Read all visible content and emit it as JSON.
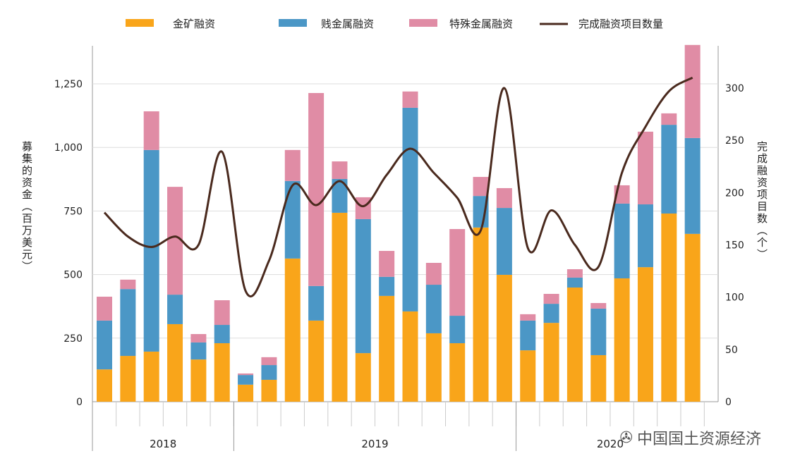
{
  "chart_data": {
    "type": "bar",
    "stacked": true,
    "legend": [
      "金矿融资",
      "贱金属融资",
      "特殊金属融资",
      "完成融资项目数量"
    ],
    "legend_placement": "top",
    "ylabel": "募集的资金（百万美元）",
    "y2label": "完成融资项目数（个）",
    "ylim": [
      0,
      1400
    ],
    "y2lim": [
      0,
      340
    ],
    "yticks": [
      "0",
      "250",
      "500",
      "750",
      "1,000",
      "1,250"
    ],
    "ytick_values": [
      0,
      250,
      500,
      750,
      1000,
      1250
    ],
    "y2ticks": [
      "0",
      "50",
      "100",
      "150",
      "200",
      "250",
      "300"
    ],
    "y2tick_values": [
      0,
      50,
      100,
      150,
      200,
      250,
      300
    ],
    "years": [
      {
        "label": "2018",
        "count": 6
      },
      {
        "label": "2019",
        "count": 12
      },
      {
        "label": "2020",
        "count": 8
      }
    ],
    "colors": {
      "gold": "#F9A51A",
      "base": "#4B97C6",
      "special": "#E08CA5",
      "line": "#4A2A1E"
    },
    "series": [
      {
        "name": "金矿融资",
        "values": [
          127,
          180,
          197,
          305,
          166,
          230,
          67,
          86,
          563,
          319,
          743,
          191,
          416,
          355,
          269,
          230,
          685,
          499,
          202,
          310,
          449,
          183,
          485,
          529,
          740,
          660
        ]
      },
      {
        "name": "贱金属融资",
        "values": [
          192,
          263,
          793,
          116,
          67,
          72,
          38,
          58,
          305,
          136,
          133,
          527,
          75,
          801,
          191,
          108,
          124,
          263,
          117,
          75,
          39,
          183,
          294,
          247,
          349,
          377
        ]
      },
      {
        "name": "特殊金属融资",
        "values": [
          94,
          37,
          152,
          424,
          33,
          97,
          6,
          31,
          122,
          759,
          69,
          86,
          102,
          64,
          86,
          341,
          75,
          78,
          25,
          39,
          33,
          22,
          72,
          286,
          45,
          366
        ]
      },
      {
        "name": "完成融资项目数量",
        "axis": "right",
        "type": "line",
        "values": [
          181,
          158,
          148,
          158,
          150,
          239,
          106,
          135,
          207,
          188,
          211,
          187,
          217,
          242,
          219,
          195,
          164,
          300,
          147,
          183,
          150,
          129,
          219,
          263,
          297,
          310
        ]
      }
    ]
  },
  "watermark": "中国国土资源经济"
}
